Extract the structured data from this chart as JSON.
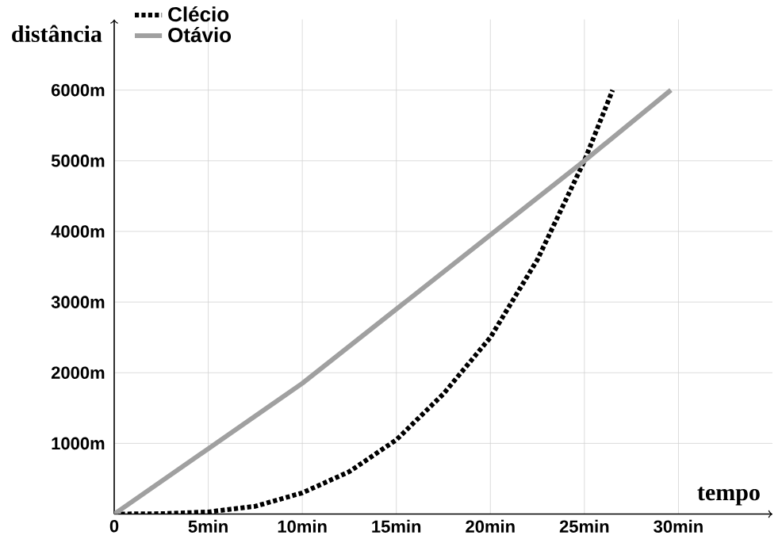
{
  "chart_data": {
    "type": "line",
    "xlabel": "tempo",
    "ylabel": "distância",
    "xlim": [
      0,
      35
    ],
    "ylim": [
      0,
      7000
    ],
    "xticks": [
      {
        "value": 0,
        "label": "0"
      },
      {
        "value": 5,
        "label": "5min"
      },
      {
        "value": 10,
        "label": "10min"
      },
      {
        "value": 15,
        "label": "15min"
      },
      {
        "value": 20,
        "label": "20min"
      },
      {
        "value": 25,
        "label": "25min"
      },
      {
        "value": 30,
        "label": "30min"
      }
    ],
    "yticks": [
      {
        "value": 1000,
        "label": "1000m"
      },
      {
        "value": 2000,
        "label": "2000m"
      },
      {
        "value": 3000,
        "label": "3000m"
      },
      {
        "value": 4000,
        "label": "4000m"
      },
      {
        "value": 5000,
        "label": "5000m"
      },
      {
        "value": 6000,
        "label": "6000m"
      }
    ],
    "grid": true,
    "legend": "top left",
    "marker": "none",
    "series": [
      {
        "name": "Clécio",
        "color": "#000000",
        "line_style": "dotted",
        "x": [
          0,
          2.5,
          5,
          7.5,
          10,
          12.5,
          15,
          17.5,
          20,
          22.5,
          25,
          26.5
        ],
        "values": [
          0,
          5,
          30,
          110,
          300,
          600,
          1050,
          1700,
          2500,
          3600,
          5000,
          6000
        ]
      },
      {
        "name": "Otávio",
        "color": "#a0a0a0",
        "line_style": "solid",
        "x": [
          0,
          10,
          25,
          29.6
        ],
        "values": [
          0,
          1850,
          5000,
          6000
        ]
      }
    ]
  }
}
